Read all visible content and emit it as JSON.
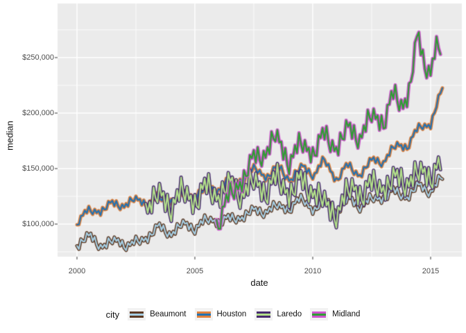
{
  "figure": {
    "ylabel": "median",
    "xlabel": "date",
    "legend_title": "city"
  },
  "chart_data": {
    "type": "line",
    "title": "",
    "xlabel": "date",
    "ylabel": "median",
    "panel_bg": "#EBEBEB",
    "grid_color": "#FFFFFF",
    "tick_mark_color": "#333333",
    "tick_label_color": "#4D4D4D",
    "x_axis": {
      "range": [
        1999.176,
        2016.324
      ],
      "ticks": [
        2000,
        2005,
        2010,
        2015
      ],
      "tick_labels": [
        "2000",
        "2005",
        "2010",
        "2015"
      ],
      "minor_ticks": [
        2002.5,
        2007.5,
        2012.5
      ]
    },
    "y_axis": {
      "range": [
        70625,
        298750
      ],
      "ticks": [
        100000,
        150000,
        200000,
        250000
      ],
      "tick_labels": [
        "$100,000",
        "$150,000",
        "$200,000",
        "$250,000"
      ],
      "minor_ticks": [
        75000,
        125000,
        175000,
        225000,
        275000
      ]
    },
    "legend": {
      "title": "city",
      "position": "bottom",
      "key_fill": "#F2F2F2"
    },
    "line_width_outer": 5,
    "line_width_inner": 2.2,
    "x_step_months": 1,
    "seasonal_pattern": [
      -1.0,
      -0.7,
      -0.2,
      0.35,
      0.75,
      1.0,
      0.85,
      0.55,
      0.15,
      -0.25,
      -0.6,
      -0.85
    ],
    "jitter_pattern": [
      0.55,
      -0.85,
      1.0,
      -0.35,
      -1.0,
      0.7,
      -0.15
    ],
    "series": [
      {
        "name": "Beaumont",
        "outer_color": "#5D3A24",
        "inner_color": "#A6CEE3",
        "x_start": 2000.0,
        "x_end": 2015.5,
        "seasonal_amplitude": 3500,
        "jitter_amplitude": 3500,
        "jitter_phase": 0,
        "trend_anchors": [
          [
            2000.0,
            82000
          ],
          [
            2000.6,
            88000
          ],
          [
            2001.2,
            80000
          ],
          [
            2001.8,
            86000
          ],
          [
            2002.3,
            79500
          ],
          [
            2003.0,
            90000
          ],
          [
            2003.5,
            96000
          ],
          [
            2004.0,
            93000
          ],
          [
            2004.6,
            99000
          ],
          [
            2005.0,
            98000
          ],
          [
            2005.8,
            104000
          ],
          [
            2006.5,
            103000
          ],
          [
            2007.0,
            108000
          ],
          [
            2008.0,
            113000
          ],
          [
            2009.0,
            116000
          ],
          [
            2009.6,
            121000
          ],
          [
            2010.1,
            114000
          ],
          [
            2010.5,
            121000
          ],
          [
            2011.0,
            112000
          ],
          [
            2011.6,
            122000
          ],
          [
            2012.1,
            117000
          ],
          [
            2012.8,
            124000
          ],
          [
            2013.4,
            128000
          ],
          [
            2014.0,
            126000
          ],
          [
            2014.5,
            133000
          ],
          [
            2015.0,
            131000
          ],
          [
            2015.5,
            141000
          ]
        ]
      },
      {
        "name": "Houston",
        "outer_color": "#E0813C",
        "inner_color": "#2272B2",
        "x_start": 2000.0,
        "x_end": 2015.5,
        "seasonal_amplitude": 3500,
        "jitter_amplitude": 3000,
        "jitter_phase": 3,
        "trend_anchors": [
          [
            2000.0,
            104000
          ],
          [
            2000.5,
            110000
          ],
          [
            2001.0,
            114000
          ],
          [
            2002.0,
            119000
          ],
          [
            2003.0,
            121000
          ],
          [
            2004.0,
            123000
          ],
          [
            2005.0,
            127000
          ],
          [
            2006.0,
            133000
          ],
          [
            2007.0,
            141000
          ],
          [
            2007.6,
            149000
          ],
          [
            2008.1,
            144000
          ],
          [
            2008.6,
            150000
          ],
          [
            2009.1,
            141000
          ],
          [
            2009.6,
            151000
          ],
          [
            2010.1,
            146000
          ],
          [
            2010.5,
            156000
          ],
          [
            2011.0,
            142000
          ],
          [
            2011.5,
            151000
          ],
          [
            2012.0,
            146000
          ],
          [
            2012.6,
            157000
          ],
          [
            2013.0,
            158000
          ],
          [
            2013.6,
            170000
          ],
          [
            2014.0,
            172000
          ],
          [
            2014.6,
            187000
          ],
          [
            2015.0,
            192000
          ],
          [
            2015.3,
            210000
          ],
          [
            2015.5,
            218000
          ]
        ]
      },
      {
        "name": "Laredo",
        "outer_color": "#472A6E",
        "inner_color": "#B2DF8A",
        "x_start": 2002.9167,
        "x_end": 2015.5,
        "seasonal_amplitude": 6500,
        "jitter_amplitude": 10000,
        "jitter_phase": 5,
        "trend_anchors": [
          [
            2002.9167,
            117000
          ],
          [
            2003.5,
            124000
          ],
          [
            2004.0,
            119000
          ],
          [
            2004.5,
            127000
          ],
          [
            2005.0,
            123000
          ],
          [
            2005.6,
            132000
          ],
          [
            2006.0,
            127000
          ],
          [
            2006.5,
            134000
          ],
          [
            2007.0,
            129000
          ],
          [
            2007.5,
            136000
          ],
          [
            2008.0,
            132000
          ],
          [
            2008.5,
            139000
          ],
          [
            2009.0,
            130000
          ],
          [
            2009.5,
            137000
          ],
          [
            2010.0,
            132000
          ],
          [
            2010.6,
            114000
          ],
          [
            2011.1,
            113000
          ],
          [
            2011.7,
            134000
          ],
          [
            2012.2,
            128000
          ],
          [
            2012.7,
            137000
          ],
          [
            2013.2,
            134000
          ],
          [
            2013.7,
            142000
          ],
          [
            2014.2,
            139000
          ],
          [
            2014.7,
            147000
          ],
          [
            2015.0,
            146000
          ],
          [
            2015.5,
            152000
          ]
        ]
      },
      {
        "name": "Midland",
        "outer_color": "#CC55CC",
        "inner_color": "#2F9E33",
        "x_start": 2005.9167,
        "x_end": 2015.5,
        "seasonal_amplitude": 6000,
        "jitter_amplitude": 8000,
        "jitter_phase": 2,
        "trend_anchors": [
          [
            2005.9167,
            101000
          ],
          [
            2006.3,
            117000
          ],
          [
            2006.7,
            131000
          ],
          [
            2007.0,
            142000
          ],
          [
            2007.5,
            157000
          ],
          [
            2008.0,
            167000
          ],
          [
            2008.4,
            177000
          ],
          [
            2009.0,
            159000
          ],
          [
            2009.5,
            170000
          ],
          [
            2010.0,
            167000
          ],
          [
            2010.5,
            178000
          ],
          [
            2011.0,
            171000
          ],
          [
            2011.5,
            184000
          ],
          [
            2012.0,
            181000
          ],
          [
            2012.5,
            195000
          ],
          [
            2013.0,
            195000
          ],
          [
            2013.4,
            214000
          ],
          [
            2013.8,
            207000
          ],
          [
            2014.1,
            224000
          ],
          [
            2014.45,
            268000
          ],
          [
            2014.7,
            245000
          ],
          [
            2015.0,
            241000
          ],
          [
            2015.2,
            260000
          ],
          [
            2015.5,
            253000
          ]
        ]
      }
    ]
  }
}
